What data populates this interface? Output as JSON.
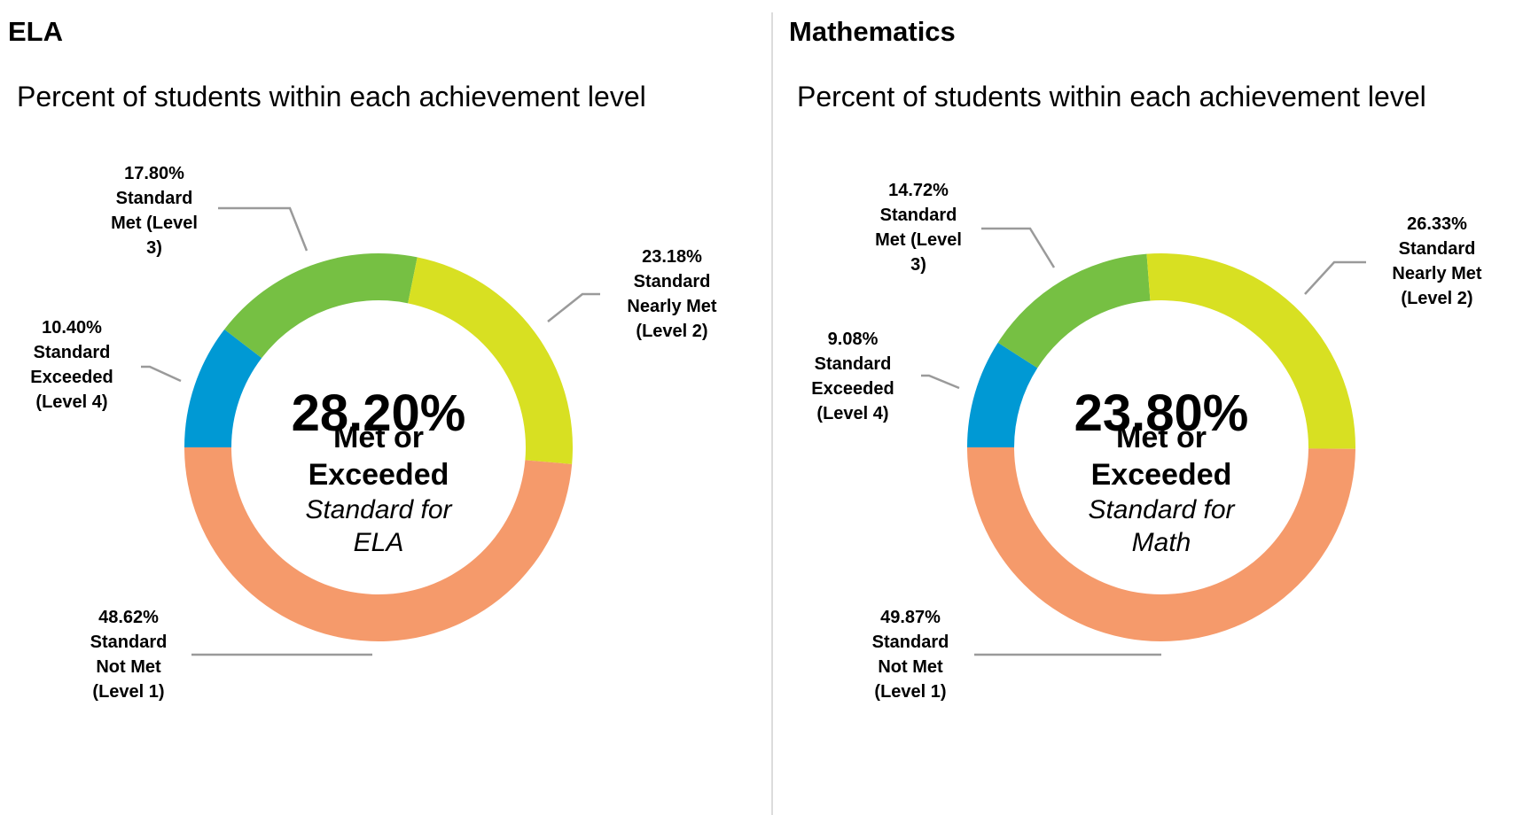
{
  "chart_data": [
    {
      "type": "donut",
      "title": "ELA",
      "subtitle": "Percent of students within each achievement level",
      "center_value": "28.20%",
      "center_text": "Met or Exceeded",
      "center_note": "Standard for ELA",
      "categories": [
        "Standard Exceeded (Level 4)",
        "Standard Met (Level 3)",
        "Standard Nearly Met (Level 2)",
        "Standard Not Met (Level 1)"
      ],
      "values": [
        10.4,
        17.8,
        23.18,
        48.62
      ],
      "value_labels": [
        "10.40%",
        "17.80%",
        "23.18%",
        "48.62%"
      ],
      "colors": [
        "#0099d4",
        "#76c043",
        "#d8e022",
        "#f59a6b"
      ]
    },
    {
      "type": "donut",
      "title": "Mathematics",
      "subtitle": "Percent of students within each achievement level",
      "center_value": "23.80%",
      "center_text": "Met or Exceeded",
      "center_note": "Standard for Math",
      "categories": [
        "Standard Exceeded (Level 4)",
        "Standard Met (Level 3)",
        "Standard Nearly Met (Level 2)",
        "Standard Not Met (Level 1)"
      ],
      "values": [
        9.08,
        14.72,
        26.33,
        49.87
      ],
      "value_labels": [
        "9.08%",
        "14.72%",
        "26.33%",
        "49.87%"
      ],
      "colors": [
        "#0099d4",
        "#76c043",
        "#d8e022",
        "#f59a6b"
      ]
    }
  ]
}
